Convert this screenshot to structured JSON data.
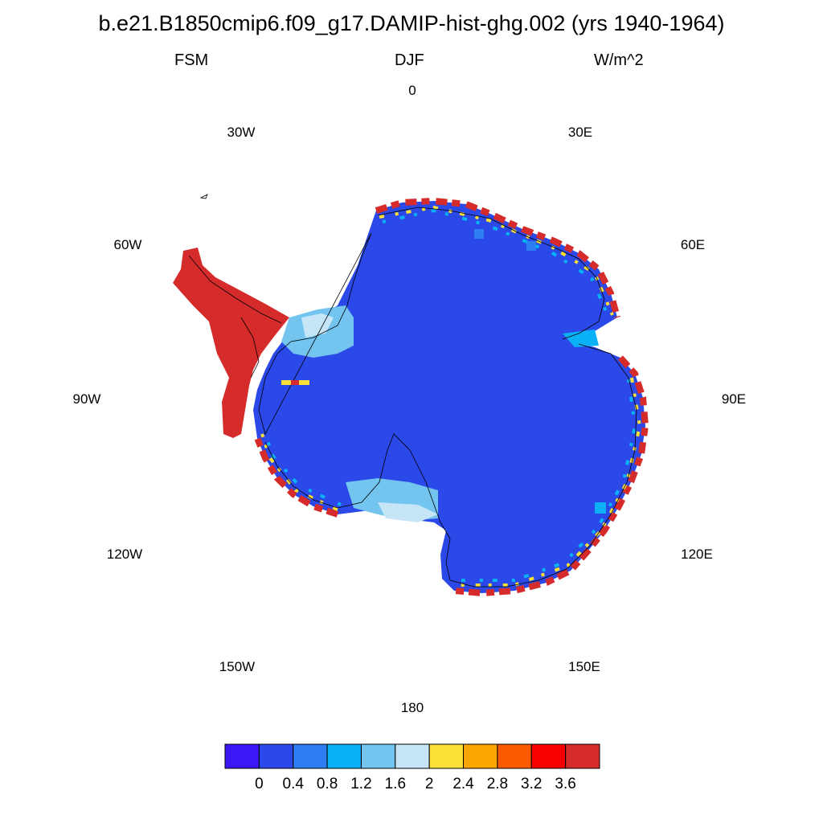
{
  "title": "b.e21.B1850cmip6.f09_g17.DAMIP-hist-ghg.002 (yrs 1940-1964)",
  "left_label": "FSM",
  "center_label": "DJF",
  "right_label": "W/m^2",
  "longitude_labels": [
    "0",
    "30E",
    "60E",
    "90E",
    "120E",
    "150E",
    "180",
    "150W",
    "120W",
    "90W",
    "60W",
    "30W"
  ],
  "colorbar": {
    "colors": [
      "#3a17f5",
      "#2b48e8",
      "#2f7df2",
      "#0ab1f6",
      "#73c5ef",
      "#c6e6f8",
      "#fbe037",
      "#fca500",
      "#fb5a00",
      "#f90000",
      "#d62b2b"
    ],
    "tick_labels": [
      "0",
      "0.4",
      "0.8",
      "1.2",
      "1.6",
      "2",
      "2.4",
      "2.8",
      "3.2",
      "3.6"
    ]
  }
}
